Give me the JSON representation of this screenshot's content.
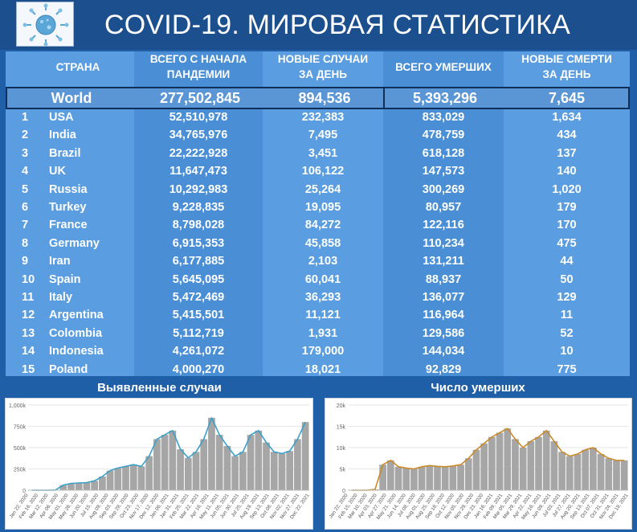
{
  "header": {
    "title": "COVID-19. МИРОВАЯ СТАТИСТИКА",
    "logo_icon": "coronavirus-icon"
  },
  "table": {
    "columns": {
      "country": "СТРАНА",
      "total_cases": [
        "ВСЕГО С НАЧАЛА",
        "ПАНДЕМИИ"
      ],
      "new_cases": [
        "НОВЫЕ СЛУЧАИ",
        "ЗА ДЕНЬ"
      ],
      "total_deaths": "ВСЕГО УМЕРШИХ",
      "new_deaths": [
        "НОВЫЕ СМЕРТИ",
        "ЗА ДЕНЬ"
      ]
    },
    "world": {
      "name": "World",
      "total_cases": "277,502,845",
      "new_cases": "894,536",
      "total_deaths": "5,393,296",
      "new_deaths": "7,645"
    },
    "rows": [
      {
        "rank": "1",
        "country": "USA",
        "total_cases": "52,510,978",
        "new_cases": "232,383",
        "total_deaths": "833,029",
        "new_deaths": "1,634"
      },
      {
        "rank": "2",
        "country": "India",
        "total_cases": "34,765,976",
        "new_cases": "7,495",
        "total_deaths": "478,759",
        "new_deaths": "434"
      },
      {
        "rank": "3",
        "country": "Brazil",
        "total_cases": "22,222,928",
        "new_cases": "3,451",
        "total_deaths": "618,128",
        "new_deaths": "137"
      },
      {
        "rank": "4",
        "country": "UK",
        "total_cases": "11,647,473",
        "new_cases": "106,122",
        "total_deaths": "147,573",
        "new_deaths": "140"
      },
      {
        "rank": "5",
        "country": "Russia",
        "total_cases": "10,292,983",
        "new_cases": "25,264",
        "total_deaths": "300,269",
        "new_deaths": "1,020"
      },
      {
        "rank": "6",
        "country": "Turkey",
        "total_cases": "9,228,835",
        "new_cases": "19,095",
        "total_deaths": "80,957",
        "new_deaths": "179"
      },
      {
        "rank": "7",
        "country": "France",
        "total_cases": "8,798,028",
        "new_cases": "84,272",
        "total_deaths": "122,116",
        "new_deaths": "170"
      },
      {
        "rank": "8",
        "country": "Germany",
        "total_cases": "6,915,353",
        "new_cases": "45,858",
        "total_deaths": "110,234",
        "new_deaths": "475"
      },
      {
        "rank": "9",
        "country": "Iran",
        "total_cases": "6,177,885",
        "new_cases": "2,103",
        "total_deaths": "131,211",
        "new_deaths": "44"
      },
      {
        "rank": "10",
        "country": "Spain",
        "total_cases": "5,645,095",
        "new_cases": "60,041",
        "total_deaths": "88,937",
        "new_deaths": "50"
      },
      {
        "rank": "11",
        "country": "Italy",
        "total_cases": "5,472,469",
        "new_cases": "36,293",
        "total_deaths": "136,077",
        "new_deaths": "129"
      },
      {
        "rank": "12",
        "country": "Argentina",
        "total_cases": "5,415,501",
        "new_cases": "11,121",
        "total_deaths": "116,964",
        "new_deaths": "11"
      },
      {
        "rank": "13",
        "country": "Colombia",
        "total_cases": "5,112,719",
        "new_cases": "1,931",
        "total_deaths": "129,586",
        "new_deaths": "52"
      },
      {
        "rank": "14",
        "country": "Indonesia",
        "total_cases": "4,261,072",
        "new_cases": "179,000",
        "total_deaths": "144,034",
        "new_deaths": "10"
      },
      {
        "rank": "15",
        "country": "Poland",
        "total_cases": "4,000,270",
        "new_cases": "18,021",
        "total_deaths": "92,829",
        "new_deaths": "775"
      }
    ]
  },
  "colors": {
    "header_bg": "#1b4f8e",
    "table_bg": "#4a8fd6",
    "bars": "#a6a6a6",
    "cases_line": "#3aa0c8",
    "deaths_line": "#c88a2a"
  },
  "chart_data": [
    {
      "type": "bar",
      "title": "Выявленные случаи",
      "ylim": [
        0,
        1000000
      ],
      "y_ticks": [
        "0",
        "250k",
        "500k",
        "750k",
        "1,000k"
      ],
      "y_tick_values": [
        0,
        250000,
        500000,
        750000,
        1000000
      ],
      "x_ticks": [
        "Jan 22, 2020",
        "Feb 16, 2020",
        "Mar 12, 2020",
        "Apr 06, 2020",
        "May 01, 2020",
        "May 26, 2020",
        "Jun 20, 2020",
        "Jul 15, 2020",
        "Aug 09, 2020",
        "Sep 03, 2020",
        "Sep 28, 2020",
        "Oct 23, 2020",
        "Nov 17, 2020",
        "Dec 12, 2020",
        "Jan 06, 2021",
        "Jan 31, 2021",
        "Feb 25, 2021",
        "Mar 22, 2021",
        "Apr 16, 2021",
        "May 11, 2021",
        "Jun 05, 2021",
        "Jun 30, 2021",
        "Jul 25, 2021",
        "Aug 19, 2021",
        "Sep 13, 2021",
        "Oct 08, 2021",
        "Nov 02, 2021",
        "Nov 27, 2021",
        "Dec 22, 2021"
      ],
      "series": [
        {
          "kind": "bars",
          "values": [
            0,
            0,
            0,
            2000,
            60000,
            80000,
            85000,
            90000,
            110000,
            160000,
            230000,
            260000,
            280000,
            300000,
            280000,
            400000,
            600000,
            650000,
            700000,
            480000,
            380000,
            450000,
            600000,
            850000,
            650000,
            520000,
            400000,
            450000,
            650000,
            700000,
            560000,
            450000,
            430000,
            460000,
            600000,
            800000
          ]
        },
        {
          "kind": "line",
          "values": [
            0,
            0,
            0,
            2000,
            60000,
            80000,
            85000,
            90000,
            110000,
            160000,
            230000,
            260000,
            280000,
            300000,
            280000,
            400000,
            600000,
            650000,
            700000,
            480000,
            380000,
            450000,
            600000,
            850000,
            650000,
            520000,
            400000,
            450000,
            650000,
            700000,
            560000,
            450000,
            430000,
            460000,
            600000,
            800000
          ]
        }
      ]
    },
    {
      "type": "bar",
      "title": "Число умерших",
      "ylim": [
        0,
        20000
      ],
      "y_ticks": [
        "0",
        "5k",
        "10k",
        "15k",
        "20k"
      ],
      "y_tick_values": [
        0,
        5000,
        10000,
        15000,
        20000
      ],
      "x_ticks": [
        "Jan 22, 2020",
        "Feb 15, 2020",
        "Mar 10, 2020",
        "Apr 03, 2020",
        "Apr 27, 2020",
        "May 21, 2020",
        "Jun 14, 2020",
        "Jul 08, 2020",
        "Aug 01, 2020",
        "Aug 25, 2020",
        "Sep 18, 2020",
        "Oct 12, 2020",
        "Nov 05, 2020",
        "Nov 29, 2020",
        "Dec 23, 2020",
        "Jan 16, 2021",
        "Feb 09, 2021",
        "Mar 05, 2021",
        "Mar 29, 2021",
        "Apr 22, 2021",
        "May 16, 2021",
        "Jun 09, 2021",
        "Jul 03, 2021",
        "Jul 27, 2021",
        "Aug 20, 2021",
        "Sep 13, 2021",
        "Oct 07, 2021",
        "Oct 31, 2021",
        "Nov 24, 2021",
        "Dec 18, 2021"
      ],
      "series": [
        {
          "kind": "bars",
          "values": [
            0,
            0,
            0,
            200,
            6000,
            7000,
            5500,
            5200,
            5000,
            5500,
            5800,
            5600,
            5500,
            5700,
            6000,
            7500,
            9500,
            11000,
            12500,
            13500,
            14500,
            12000,
            10000,
            11500,
            12500,
            14000,
            11500,
            9000,
            8000,
            8500,
            9500,
            10000,
            8500,
            7500,
            7000,
            7000
          ]
        },
        {
          "kind": "line",
          "values": [
            0,
            0,
            0,
            200,
            6000,
            7000,
            5500,
            5200,
            5000,
            5500,
            5800,
            5600,
            5500,
            5700,
            6000,
            7500,
            9500,
            11000,
            12500,
            13500,
            14500,
            12000,
            10000,
            11500,
            12500,
            14000,
            11500,
            9000,
            8000,
            8500,
            9500,
            10000,
            8500,
            7500,
            7000,
            7000
          ]
        }
      ]
    }
  ]
}
